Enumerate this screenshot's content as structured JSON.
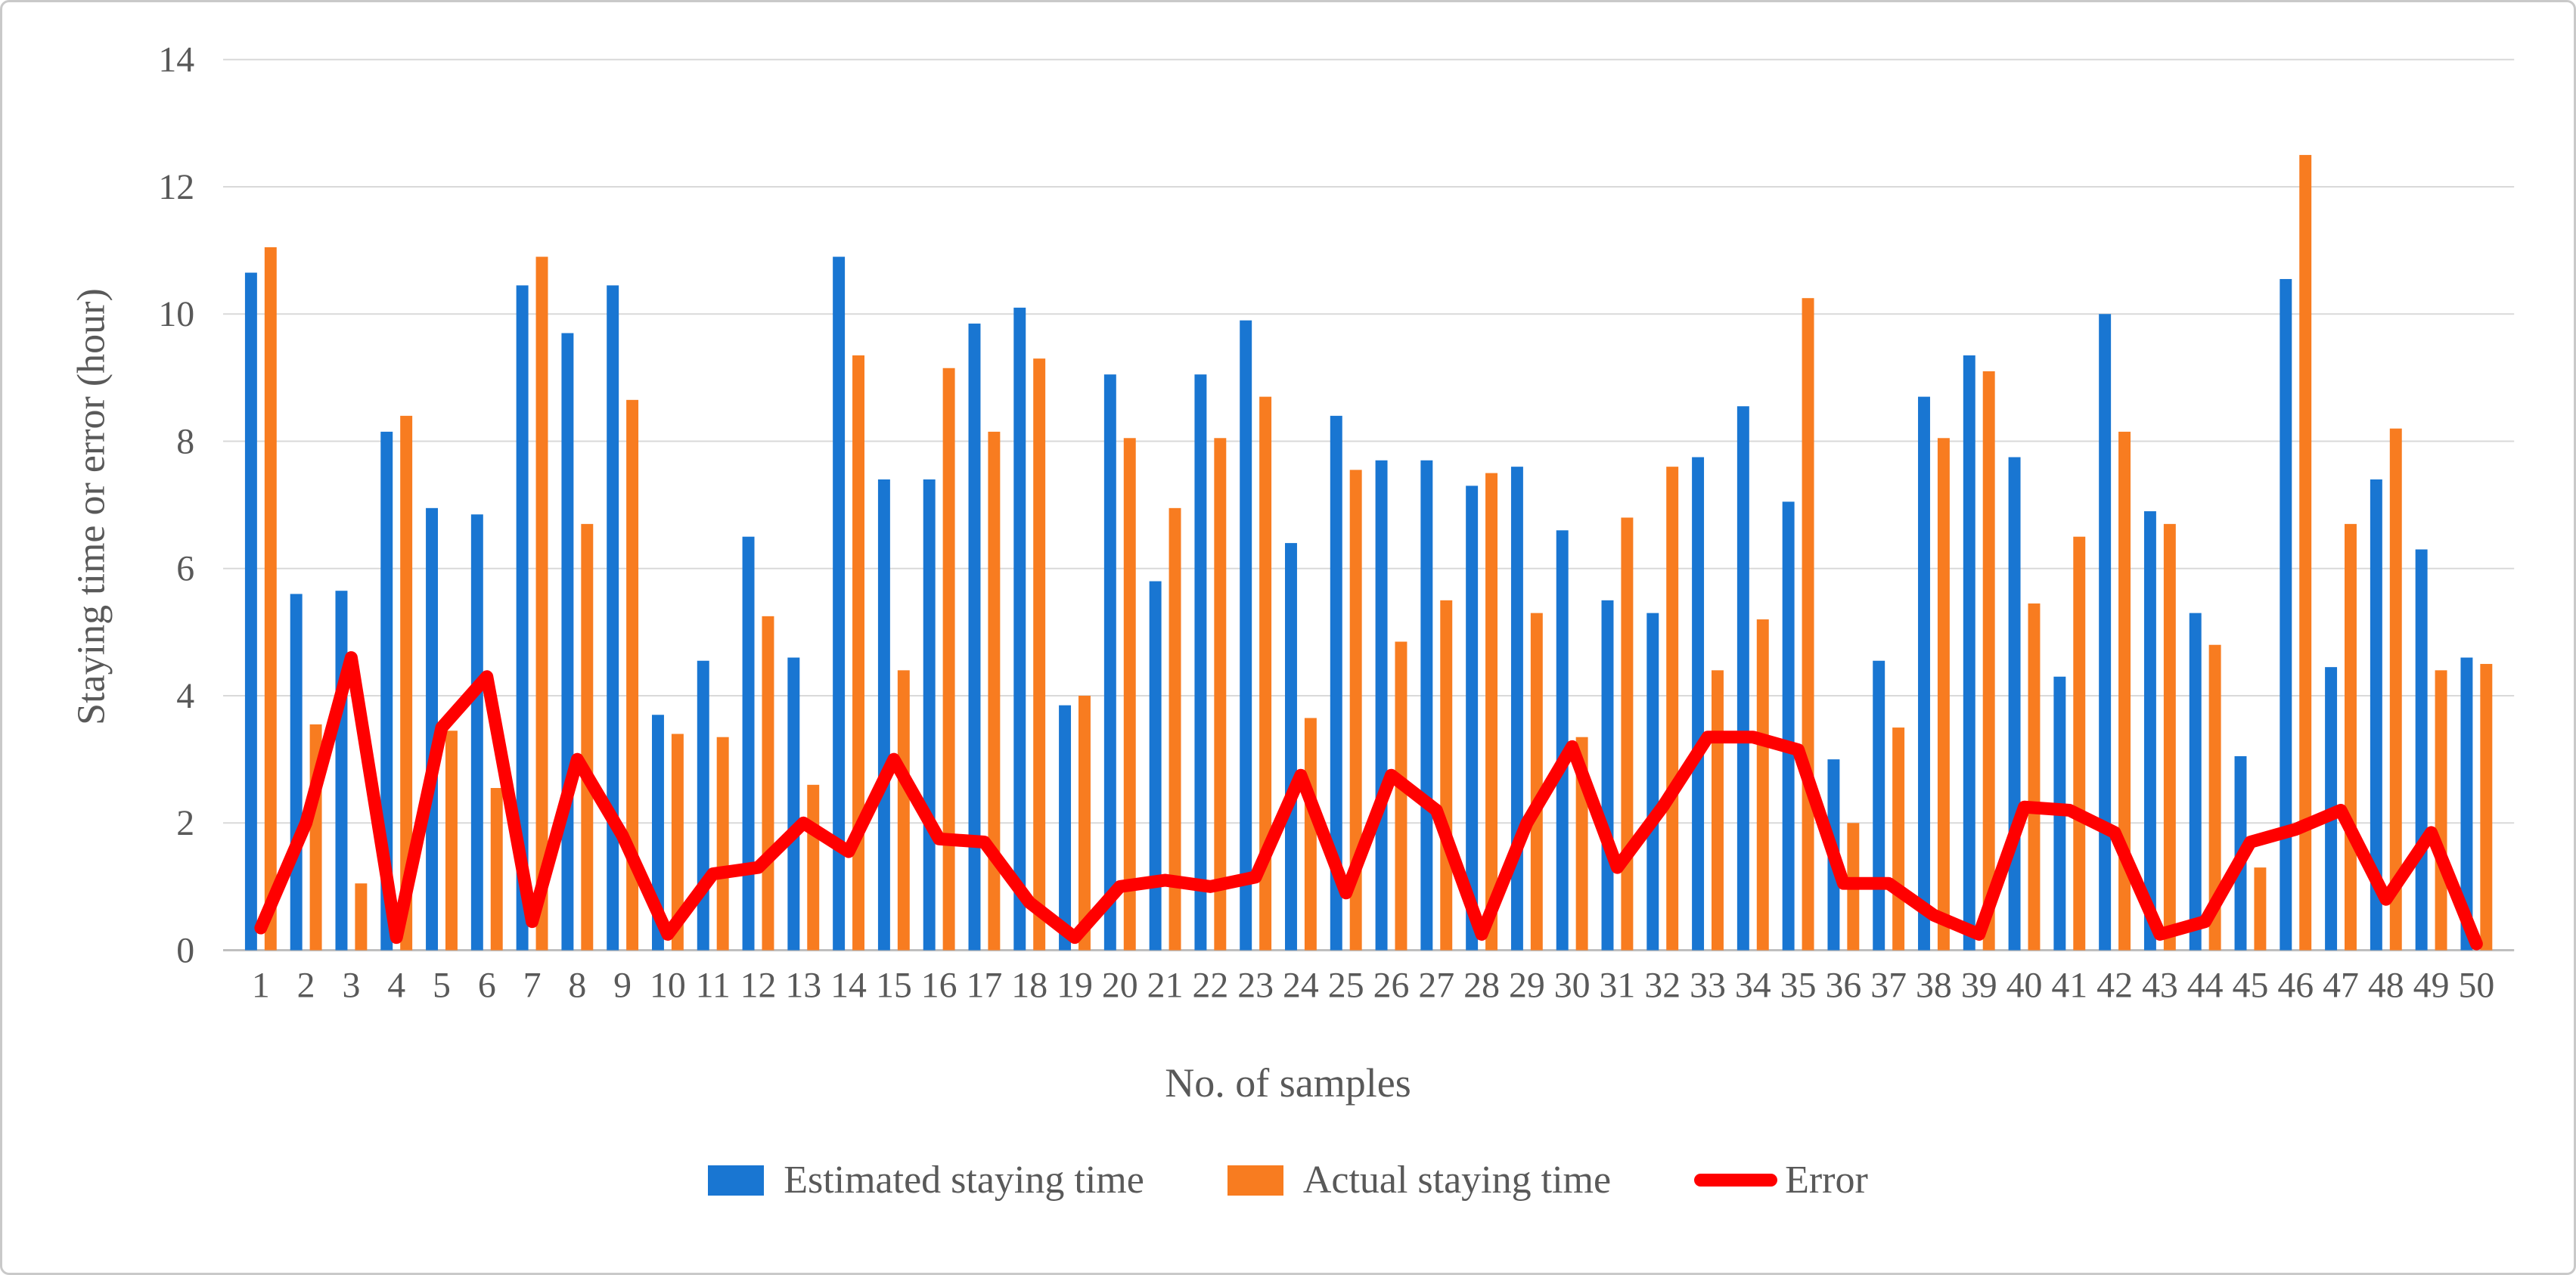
{
  "figure": {
    "background": "#ffffff",
    "border_color": "#c9c9c9"
  },
  "axes": {
    "y_title": "Staying time or error (hour)",
    "x_title": "No. of samples",
    "text_color": "#595959",
    "gridline_color": "#d9d9d9",
    "baseline_color": "#bfbfbf"
  },
  "legend": [
    {
      "label": "Estimated staying time",
      "color": "#1976d2",
      "marker": "square"
    },
    {
      "label": "Actual staying time",
      "color": "#f87c20",
      "marker": "square"
    },
    {
      "label": "Error",
      "color": "#ff0000",
      "marker": "line"
    }
  ],
  "chart_data": {
    "type": "bar",
    "title": "",
    "xlabel": "No. of samples",
    "ylabel": "Staying time or error (hour)",
    "ylim": [
      0,
      14
    ],
    "ytick_step": 2,
    "grid": true,
    "legend_position": "bottom",
    "categories": [
      "1",
      "2",
      "3",
      "4",
      "5",
      "6",
      "7",
      "8",
      "9",
      "10",
      "11",
      "12",
      "13",
      "14",
      "15",
      "16",
      "17",
      "18",
      "19",
      "20",
      "21",
      "22",
      "23",
      "24",
      "25",
      "26",
      "27",
      "28",
      "29",
      "30",
      "31",
      "32",
      "33",
      "34",
      "35",
      "36",
      "37",
      "38",
      "39",
      "40",
      "41",
      "42",
      "43",
      "44",
      "45",
      "46",
      "47",
      "48",
      "49",
      "50"
    ],
    "series": [
      {
        "name": "Estimated staying time",
        "type": "bar",
        "color": "#1976d2",
        "values": [
          10.65,
          5.6,
          5.65,
          8.15,
          6.95,
          6.85,
          10.45,
          9.7,
          10.45,
          3.7,
          4.55,
          6.5,
          4.6,
          10.9,
          7.4,
          7.4,
          9.85,
          10.1,
          3.85,
          9.05,
          5.8,
          9.05,
          9.9,
          6.4,
          8.4,
          7.7,
          7.7,
          7.3,
          7.6,
          6.6,
          5.5,
          5.3,
          7.75,
          8.55,
          7.05,
          3.0,
          4.55,
          8.7,
          9.35,
          7.75,
          4.3,
          10.0,
          6.9,
          5.3,
          3.05,
          10.55,
          4.45,
          7.4,
          6.3,
          4.6
        ]
      },
      {
        "name": "Actual staying time",
        "type": "bar",
        "color": "#f87c20",
        "values": [
          11.05,
          3.55,
          1.05,
          8.4,
          3.45,
          2.55,
          10.9,
          6.7,
          8.65,
          3.4,
          3.35,
          5.25,
          2.6,
          9.35,
          4.4,
          9.15,
          8.15,
          9.3,
          4.0,
          8.05,
          6.95,
          8.05,
          8.7,
          3.65,
          7.55,
          4.85,
          5.5,
          7.5,
          5.3,
          3.35,
          6.8,
          7.6,
          4.4,
          5.2,
          10.25,
          2.0,
          3.5,
          8.05,
          9.1,
          5.45,
          6.5,
          8.15,
          6.7,
          4.8,
          1.3,
          12.5,
          6.7,
          8.2,
          4.4,
          4.5
        ]
      },
      {
        "name": "Error",
        "type": "line",
        "color": "#ff0000",
        "values": [
          0.35,
          2.0,
          4.6,
          0.2,
          3.5,
          4.3,
          0.45,
          3.0,
          1.8,
          0.25,
          1.2,
          1.3,
          2.0,
          1.55,
          3.0,
          1.75,
          1.7,
          0.75,
          0.2,
          1.0,
          1.1,
          1.0,
          1.15,
          2.75,
          0.9,
          2.75,
          2.2,
          0.25,
          2.0,
          3.2,
          1.3,
          2.25,
          3.35,
          3.35,
          3.15,
          1.05,
          1.05,
          0.55,
          0.25,
          2.25,
          2.2,
          1.85,
          0.25,
          0.45,
          1.7,
          1.9,
          2.2,
          0.8,
          1.85,
          0.1
        ]
      }
    ]
  }
}
